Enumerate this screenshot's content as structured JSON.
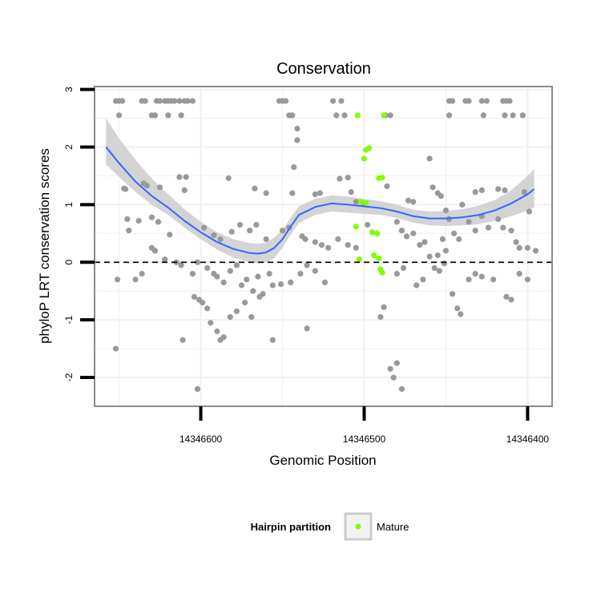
{
  "chart_data": {
    "type": "scatter",
    "title": "Conservation",
    "xlabel": "Genomic Position",
    "ylabel": "phyloP LRT conservation scores",
    "x_reversed": true,
    "xlim": [
      14346665,
      14346385
    ],
    "ylim": [
      -2.5,
      3.05
    ],
    "x_ticks": [
      14346600,
      14346500,
      14346400
    ],
    "x_tick_labels": [
      "14346600",
      "14346500",
      "14346400"
    ],
    "y_ticks": [
      -2,
      -1,
      0,
      1,
      2,
      3
    ],
    "y_tick_labels": [
      "-2",
      "-1",
      "0",
      "1",
      "2",
      "3"
    ],
    "reference_line": {
      "y": 0,
      "style": "dashed"
    },
    "grid": true,
    "colors": {
      "points": "#999999",
      "mature": "#7FFF00",
      "smooth": "#3366FF",
      "ribbon": "#cccccc",
      "panel_border": "#8a8a8a",
      "grid": "#f2f2f2"
    },
    "series": [
      {
        "role": "other",
        "points": [
          [
            14346652,
            2.8
          ],
          [
            14346650,
            2.8
          ],
          [
            14346648,
            2.8
          ],
          [
            14346636,
            2.8
          ],
          [
            14346634,
            2.8
          ],
          [
            14346627,
            2.8
          ],
          [
            14346625,
            2.8
          ],
          [
            14346622,
            2.8
          ],
          [
            14346620,
            2.8
          ],
          [
            14346618,
            2.8
          ],
          [
            14346616,
            2.8
          ],
          [
            14346613,
            2.8
          ],
          [
            14346610,
            2.8
          ],
          [
            14346608,
            2.8
          ],
          [
            14346605,
            2.8
          ],
          [
            14346552,
            2.8
          ],
          [
            14346550,
            2.8
          ],
          [
            14346548,
            2.8
          ],
          [
            14346519,
            2.8
          ],
          [
            14346514,
            2.8
          ],
          [
            14346448,
            2.8
          ],
          [
            14346446,
            2.8
          ],
          [
            14346438,
            2.8
          ],
          [
            14346436,
            2.8
          ],
          [
            14346428,
            2.8
          ],
          [
            14346425,
            2.8
          ],
          [
            14346415,
            2.8
          ],
          [
            14346413,
            2.8
          ],
          [
            14346411,
            2.8
          ],
          [
            14346650,
            2.55
          ],
          [
            14346630,
            2.55
          ],
          [
            14346628,
            2.55
          ],
          [
            14346620,
            2.55
          ],
          [
            14346612,
            2.55
          ],
          [
            14346546,
            2.55
          ],
          [
            14346544,
            2.55
          ],
          [
            14346517,
            2.55
          ],
          [
            14346512,
            2.55
          ],
          [
            14346487,
            2.55
          ],
          [
            14346484,
            2.55
          ],
          [
            14346448,
            2.55
          ],
          [
            14346427,
            2.55
          ],
          [
            14346414,
            2.55
          ],
          [
            14346409,
            2.55
          ],
          [
            14346403,
            2.55
          ],
          [
            14346541,
            2.32
          ],
          [
            14346541,
            2.12
          ],
          [
            14346543,
            1.65
          ],
          [
            14346515,
            1.45
          ],
          [
            14346510,
            1.47
          ],
          [
            14346613,
            1.48
          ],
          [
            14346609,
            1.48
          ],
          [
            14346583,
            1.46
          ],
          [
            14346486,
            1.32
          ],
          [
            14346460,
            1.8
          ],
          [
            14346458,
            1.3
          ],
          [
            14346647,
            1.28
          ],
          [
            14346646,
            1.27
          ],
          [
            14346635,
            1.37
          ],
          [
            14346633,
            1.33
          ],
          [
            14346625,
            1.3
          ],
          [
            14346610,
            1.25
          ],
          [
            14346567,
            1.28
          ],
          [
            14346560,
            1.2
          ],
          [
            14346544,
            1.2
          ],
          [
            14346530,
            1.18
          ],
          [
            14346527,
            1.2
          ],
          [
            14346508,
            1.22
          ],
          [
            14346505,
            1.05
          ],
          [
            14346500,
            1.02
          ],
          [
            14346473,
            1.07
          ],
          [
            14346470,
            1.05
          ],
          [
            14346455,
            1.2
          ],
          [
            14346453,
            1.15
          ],
          [
            14346450,
            0.9
          ],
          [
            14346440,
            1.0
          ],
          [
            14346432,
            1.22
          ],
          [
            14346428,
            1.25
          ],
          [
            14346418,
            1.27
          ],
          [
            14346414,
            1.25
          ],
          [
            14346402,
            1.22
          ],
          [
            14346399,
            0.88
          ],
          [
            14346645,
            0.75
          ],
          [
            14346644,
            0.55
          ],
          [
            14346638,
            0.72
          ],
          [
            14346630,
            0.78
          ],
          [
            14346626,
            0.7
          ],
          [
            14346619,
            0.48
          ],
          [
            14346598,
            0.6
          ],
          [
            14346592,
            0.47
          ],
          [
            14346588,
            0.4
          ],
          [
            14346581,
            0.53
          ],
          [
            14346576,
            0.65
          ],
          [
            14346570,
            0.55
          ],
          [
            14346566,
            0.65
          ],
          [
            14346560,
            0.4
          ],
          [
            14346550,
            0.55
          ],
          [
            14346546,
            0.6
          ],
          [
            14346538,
            0.45
          ],
          [
            14346536,
            0.4
          ],
          [
            14346530,
            0.35
          ],
          [
            14346526,
            0.3
          ],
          [
            14346522,
            0.25
          ],
          [
            14346516,
            0.4
          ],
          [
            14346510,
            0.3
          ],
          [
            14346505,
            0.25
          ],
          [
            14346498,
            0.65
          ],
          [
            14346480,
            0.7
          ],
          [
            14346477,
            0.55
          ],
          [
            14346474,
            0.45
          ],
          [
            14346470,
            0.5
          ],
          [
            14346466,
            0.3
          ],
          [
            14346463,
            0.35
          ],
          [
            14346460,
            0.1
          ],
          [
            14346455,
            0.12
          ],
          [
            14346452,
            0.4
          ],
          [
            14346450,
            0.2
          ],
          [
            14346448,
            0.75
          ],
          [
            14346445,
            0.5
          ],
          [
            14346442,
            0.4
          ],
          [
            14346436,
            0.7
          ],
          [
            14346432,
            0.55
          ],
          [
            14346428,
            0.8
          ],
          [
            14346424,
            0.6
          ],
          [
            14346418,
            0.75
          ],
          [
            14346415,
            0.6
          ],
          [
            14346410,
            0.55
          ],
          [
            14346407,
            0.35
          ],
          [
            14346405,
            0.25
          ],
          [
            14346400,
            0.25
          ],
          [
            14346395,
            0.2
          ],
          [
            14346630,
            0.25
          ],
          [
            14346628,
            0.2
          ],
          [
            14346622,
            0.05
          ],
          [
            14346615,
            0.0
          ],
          [
            14346612,
            -0.05
          ],
          [
            14346605,
            -0.2
          ],
          [
            14346602,
            0.0
          ],
          [
            14346596,
            -0.1
          ],
          [
            14346592,
            -0.2
          ],
          [
            14346590,
            -0.25
          ],
          [
            14346586,
            -0.35
          ],
          [
            14346582,
            -0.15
          ],
          [
            14346578,
            -0.05
          ],
          [
            14346575,
            -0.4
          ],
          [
            14346572,
            -0.3
          ],
          [
            14346568,
            -0.5
          ],
          [
            14346565,
            -0.25
          ],
          [
            14346562,
            -0.55
          ],
          [
            14346558,
            -0.2
          ],
          [
            14346556,
            -0.4
          ],
          [
            14346551,
            -0.38
          ],
          [
            14346545,
            -0.35
          ],
          [
            14346539,
            -0.2
          ],
          [
            14346535,
            -0.05
          ],
          [
            14346530,
            -0.15
          ],
          [
            14346524,
            -0.35
          ],
          [
            14346480,
            -0.2
          ],
          [
            14346476,
            -0.1
          ],
          [
            14346468,
            -0.4
          ],
          [
            14346464,
            -0.3
          ],
          [
            14346457,
            -0.1
          ],
          [
            14346454,
            -0.15
          ],
          [
            14346451,
            -0.02
          ],
          [
            14346446,
            -0.55
          ],
          [
            14346443,
            -0.8
          ],
          [
            14346441,
            -0.9
          ],
          [
            14346436,
            -0.3
          ],
          [
            14346432,
            -0.2
          ],
          [
            14346428,
            -0.25
          ],
          [
            14346421,
            -0.3
          ],
          [
            14346413,
            -0.6
          ],
          [
            14346410,
            -0.65
          ],
          [
            14346405,
            -0.2
          ],
          [
            14346400,
            -0.3
          ],
          [
            14346640,
            -0.3
          ],
          [
            14346636,
            -0.2
          ],
          [
            14346604,
            -0.6
          ],
          [
            14346601,
            -0.65
          ],
          [
            14346599,
            -0.7
          ],
          [
            14346596,
            -0.8
          ],
          [
            14346594,
            -1.05
          ],
          [
            14346590,
            -1.2
          ],
          [
            14346588,
            -1.35
          ],
          [
            14346586,
            -1.3
          ],
          [
            14346582,
            -0.95
          ],
          [
            14346578,
            -0.85
          ],
          [
            14346573,
            -0.7
          ],
          [
            14346569,
            -0.95
          ],
          [
            14346564,
            -0.6
          ],
          [
            14346556,
            -1.35
          ],
          [
            14346535,
            -1.15
          ],
          [
            14346484,
            -1.85
          ],
          [
            14346482,
            -2.0
          ],
          [
            14346480,
            -1.75
          ],
          [
            14346477,
            -2.2
          ],
          [
            14346490,
            -0.95
          ],
          [
            14346488,
            -0.78
          ],
          [
            14346611,
            -1.35
          ],
          [
            14346602,
            -2.2
          ],
          [
            14346652,
            -1.5
          ],
          [
            14346651,
            -0.3
          ]
        ]
      },
      {
        "role": "mature",
        "name": "Mature",
        "points": [
          [
            14346504,
            2.55
          ],
          [
            14346497,
            1.98
          ],
          [
            14346499,
            1.95
          ],
          [
            14346500,
            1.8
          ],
          [
            14346489,
            1.47
          ],
          [
            14346491,
            1.46
          ],
          [
            14346502,
            1.05
          ],
          [
            14346499,
            1.03
          ],
          [
            14346505,
            0.62
          ],
          [
            14346495,
            0.52
          ],
          [
            14346492,
            0.5
          ],
          [
            14346494,
            0.12
          ],
          [
            14346491,
            0.07
          ],
          [
            14346490,
            -0.12
          ],
          [
            14346489,
            -0.18
          ],
          [
            14346503,
            0.05
          ],
          [
            14346488,
            2.55
          ]
        ]
      }
    ],
    "smooth": {
      "x": [
        14346658,
        14346650,
        14346640,
        14346630,
        14346620,
        14346610,
        14346600,
        14346590,
        14346580,
        14346570,
        14346565,
        14346560,
        14346555,
        14346550,
        14346545,
        14346540,
        14346530,
        14346520,
        14346510,
        14346500,
        14346490,
        14346480,
        14346470,
        14346460,
        14346450,
        14346440,
        14346430,
        14346420,
        14346410,
        14346400,
        14346396
      ],
      "y": [
        2.0,
        1.72,
        1.4,
        1.15,
        0.95,
        0.72,
        0.52,
        0.35,
        0.23,
        0.16,
        0.15,
        0.17,
        0.25,
        0.4,
        0.62,
        0.82,
        0.96,
        1.02,
        1.0,
        0.97,
        0.94,
        0.88,
        0.8,
        0.76,
        0.76,
        0.78,
        0.82,
        0.9,
        1.02,
        1.18,
        1.27
      ],
      "lower": [
        1.7,
        1.48,
        1.22,
        1.0,
        0.82,
        0.6,
        0.4,
        0.22,
        0.08,
        0.0,
        -0.02,
        0.0,
        0.07,
        0.25,
        0.48,
        0.68,
        0.82,
        0.88,
        0.86,
        0.84,
        0.82,
        0.77,
        0.69,
        0.64,
        0.63,
        0.64,
        0.66,
        0.72,
        0.8,
        0.9,
        0.95
      ],
      "upper": [
        2.5,
        2.15,
        1.78,
        1.45,
        1.18,
        0.92,
        0.7,
        0.52,
        0.4,
        0.33,
        0.32,
        0.34,
        0.43,
        0.56,
        0.77,
        0.97,
        1.1,
        1.16,
        1.14,
        1.1,
        1.06,
        1.0,
        0.91,
        0.88,
        0.89,
        0.92,
        0.98,
        1.08,
        1.25,
        1.5,
        1.62
      ]
    },
    "legend": {
      "title": "Hairpin partition",
      "entries": [
        {
          "label": "Mature",
          "color": "#7FFF00"
        }
      ],
      "placement": "bottom"
    }
  }
}
